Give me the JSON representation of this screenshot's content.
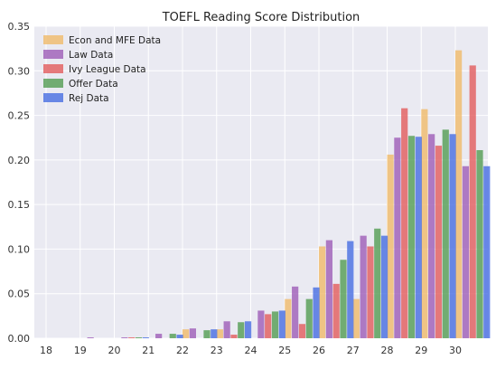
{
  "chart_data": {
    "type": "bar",
    "title": "TOEFL Reading Score Distribution",
    "xlabel": "",
    "ylabel": "",
    "categories": [
      "18",
      "19",
      "20",
      "21",
      "22",
      "23",
      "24",
      "25",
      "26",
      "27",
      "28",
      "29",
      "30"
    ],
    "ylim": [
      0,
      0.35
    ],
    "yticks": [
      "0.00",
      "0.05",
      "0.10",
      "0.15",
      "0.20",
      "0.25",
      "0.30",
      "0.35"
    ],
    "grid": true,
    "legend_position": "top-left",
    "series": [
      {
        "name": "Econ and MFE Data",
        "color": "#f0b967",
        "values": [
          0.0,
          0.0,
          0.0,
          0.0,
          0.01,
          0.01,
          0.0,
          0.044,
          0.103,
          0.044,
          0.206,
          0.257,
          0.323
        ]
      },
      {
        "name": "Law Data",
        "color": "#9b59b6",
        "values": [
          0.0,
          0.001,
          0.001,
          0.005,
          0.011,
          0.019,
          0.031,
          0.058,
          0.11,
          0.115,
          0.225,
          0.229,
          0.193
        ]
      },
      {
        "name": "Ivy League Data",
        "color": "#e15759",
        "values": [
          0.0,
          0.0,
          0.001,
          0.0,
          0.0,
          0.004,
          0.027,
          0.016,
          0.061,
          0.103,
          0.258,
          0.216,
          0.306
        ]
      },
      {
        "name": "Offer Data",
        "color": "#4e9a4e",
        "values": [
          0.0,
          0.0,
          0.001,
          0.005,
          0.009,
          0.018,
          0.03,
          0.044,
          0.088,
          0.123,
          0.227,
          0.234,
          0.211
        ]
      },
      {
        "name": "Rej Data",
        "color": "#4169e1",
        "values": [
          0.0,
          0.0,
          0.001,
          0.004,
          0.01,
          0.019,
          0.031,
          0.057,
          0.109,
          0.115,
          0.226,
          0.229,
          0.193
        ]
      }
    ]
  }
}
